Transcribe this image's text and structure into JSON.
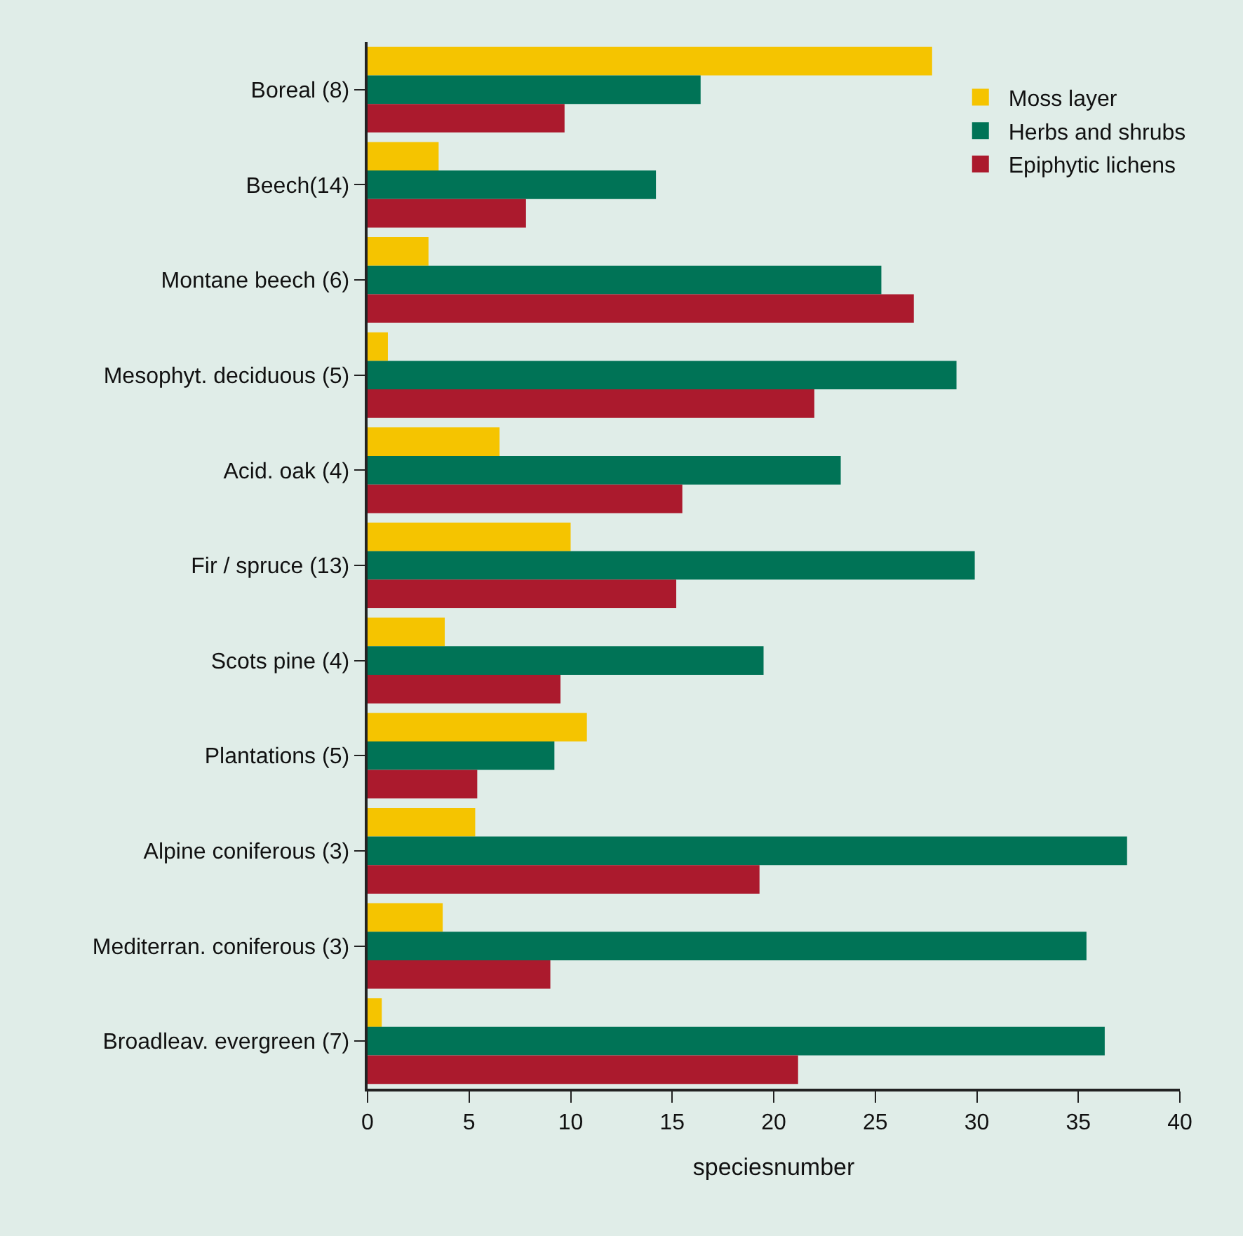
{
  "chart_data": {
    "type": "bar",
    "orientation": "horizontal",
    "xlabel": "speciesnumber",
    "categories": [
      "Boreal (8)",
      "Beech(14)",
      "Montane beech (6)",
      "Mesophyt. deciduous (5)",
      "Acid. oak (4)",
      "Fir / spruce (13)",
      "Scots pine (4)",
      "Plantations (5)",
      "Alpine coniferous (3)",
      "Mediterran. coniferous (3)",
      "Broadleav. evergreen (7)"
    ],
    "series": [
      {
        "name": "Moss layer",
        "color": "#f5c400",
        "values": [
          27.8,
          3.5,
          3.0,
          1.0,
          6.5,
          10.0,
          3.8,
          10.8,
          5.3,
          3.7,
          0.7
        ]
      },
      {
        "name": "Herbs and shrubs",
        "color": "#007356",
        "values": [
          16.4,
          14.2,
          25.3,
          29.0,
          23.3,
          29.9,
          19.5,
          9.2,
          37.4,
          35.4,
          36.3
        ]
      },
      {
        "name": "Epiphytic lichens",
        "color": "#ab1a2d",
        "values": [
          9.7,
          7.8,
          26.9,
          22.0,
          15.5,
          15.2,
          9.5,
          5.4,
          19.3,
          9.0,
          21.2
        ]
      }
    ],
    "xlim": [
      0,
      40
    ],
    "xticks": [
      0,
      5,
      10,
      15,
      20,
      25,
      30,
      35,
      40
    ],
    "grid": false,
    "legend": "top right"
  }
}
